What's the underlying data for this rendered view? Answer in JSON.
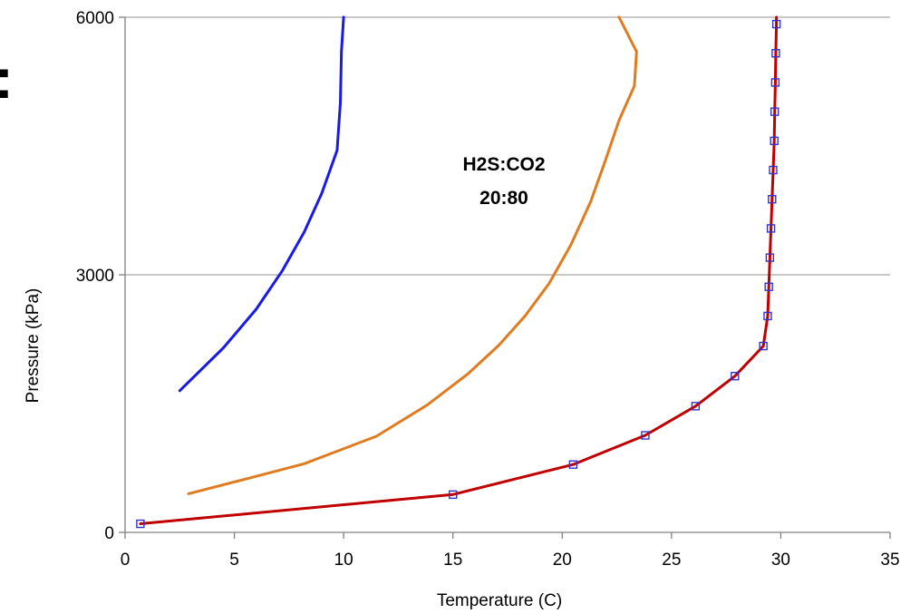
{
  "chart_data": {
    "type": "line",
    "title": "",
    "xlabel": "Temperature (C)",
    "ylabel": "Pressure (kPa)",
    "xlim": [
      0,
      35
    ],
    "ylim": [
      0,
      6000
    ],
    "x_ticks": [
      0,
      5,
      10,
      15,
      20,
      25,
      30,
      35
    ],
    "y_ticks": [
      0,
      3000,
      6000
    ],
    "grid": "horizontal at 3000 and 6000",
    "annotation": {
      "line1": "H2S:CO2",
      "line2": "20:80"
    },
    "series": [
      {
        "color": "#1a1ae6",
        "marker": "none",
        "points": [
          [
            2.5,
            1650
          ],
          [
            4.5,
            2150
          ],
          [
            6,
            2600
          ],
          [
            7.2,
            3050
          ],
          [
            8.2,
            3500
          ],
          [
            9.0,
            3950
          ],
          [
            9.7,
            4450
          ],
          [
            9.85,
            5000
          ],
          [
            9.9,
            5600
          ],
          [
            10.0,
            6000
          ]
        ]
      },
      {
        "color": "#e07b1f",
        "marker": "none",
        "points": [
          [
            2.9,
            450
          ],
          [
            5.5,
            620
          ],
          [
            8.2,
            800
          ],
          [
            11.5,
            1120
          ],
          [
            13.8,
            1480
          ],
          [
            15.7,
            1850
          ],
          [
            17.1,
            2180
          ],
          [
            18.3,
            2520
          ],
          [
            19.4,
            2900
          ],
          [
            20.4,
            3350
          ],
          [
            21.3,
            3850
          ],
          [
            22.0,
            4350
          ],
          [
            22.6,
            4800
          ],
          [
            23.3,
            5200
          ],
          [
            23.4,
            5600
          ],
          [
            22.6,
            6000
          ]
        ]
      },
      {
        "color": "#c00000",
        "marker": "square",
        "marker_color": "#3333cc",
        "points": [
          [
            0.7,
            100
          ],
          [
            15.0,
            440
          ],
          [
            20.5,
            790
          ],
          [
            23.8,
            1130
          ],
          [
            26.1,
            1470
          ],
          [
            27.9,
            1820
          ],
          [
            29.2,
            2170
          ],
          [
            29.4,
            2520
          ],
          [
            29.45,
            2860
          ],
          [
            29.5,
            3200
          ],
          [
            29.55,
            3540
          ],
          [
            29.6,
            3880
          ],
          [
            29.65,
            4220
          ],
          [
            29.7,
            4560
          ],
          [
            29.72,
            4900
          ],
          [
            29.75,
            5240
          ],
          [
            29.77,
            5580
          ],
          [
            29.8,
            5920
          ],
          [
            29.8,
            6000
          ]
        ]
      }
    ]
  },
  "edge_glyph": ":"
}
